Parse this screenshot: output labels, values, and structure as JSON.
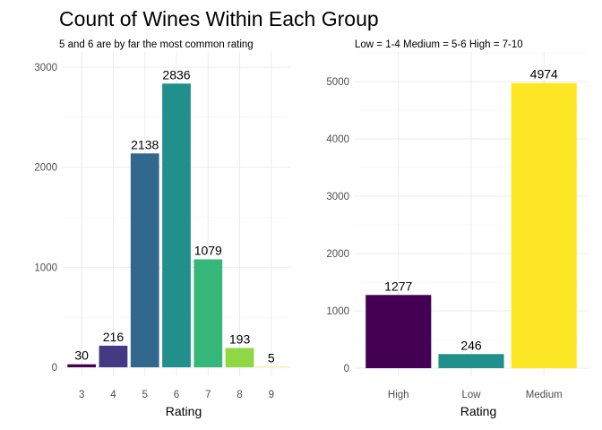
{
  "title": "Count of Wines Within Each Group",
  "chart_data": [
    {
      "type": "bar",
      "subtitle": "5 and 6 are by far the most common rating",
      "xlabel": "Rating",
      "ylabel": "",
      "categories": [
        "3",
        "4",
        "5",
        "6",
        "7",
        "8",
        "9"
      ],
      "values": [
        30,
        216,
        2138,
        2836,
        1079,
        193,
        5
      ],
      "data_labels": [
        "30",
        "216",
        "2138",
        "2836",
        "1079",
        "193",
        "5"
      ],
      "colors": [
        "#440154",
        "#443a83",
        "#31688e",
        "#21908c",
        "#35b779",
        "#8fd744",
        "#fde725"
      ],
      "yticks": [
        0,
        1000,
        2000,
        3000
      ],
      "ylim": [
        0,
        3000
      ],
      "grid": true,
      "legend": "none"
    },
    {
      "type": "bar",
      "subtitle": "Low = 1-4    Medium = 5-6    High = 7-10",
      "xlabel": "Rating",
      "ylabel": "",
      "categories": [
        "High",
        "Low",
        "Medium"
      ],
      "values": [
        1277,
        246,
        4974
      ],
      "data_labels": [
        "1277",
        "246",
        "4974"
      ],
      "colors": [
        "#440154",
        "#21908c",
        "#fde725"
      ],
      "yticks": [
        0,
        1000,
        2000,
        3000,
        4000,
        5000
      ],
      "ylim": [
        0,
        5000
      ],
      "grid": true,
      "legend": "none"
    }
  ]
}
